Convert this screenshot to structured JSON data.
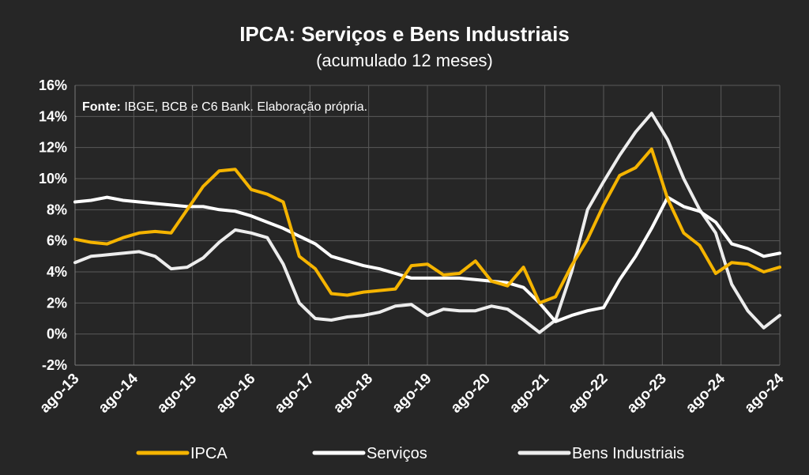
{
  "chart_data": {
    "type": "line",
    "title": "IPCA: Serviços e Bens Industriais",
    "subtitle": "(acumulado 12 meses)",
    "source_label": "Fonte:",
    "source_text": " IBGE, BCB e C6 Bank. Elaboração própria.",
    "ylim": [
      -2,
      16
    ],
    "yticks": [
      "-2%",
      "0%",
      "2%",
      "4%",
      "6%",
      "8%",
      "10%",
      "12%",
      "14%",
      "16%"
    ],
    "ytick_values": [
      -2,
      0,
      2,
      4,
      6,
      8,
      10,
      12,
      14,
      16
    ],
    "xticks": [
      "ago-13",
      "ago-14",
      "ago-15",
      "ago-16",
      "ago-17",
      "ago-18",
      "ago-19",
      "ago-20",
      "ago-21",
      "ago-22",
      "ago-23",
      "ago-24"
    ],
    "xlim": [
      0,
      132
    ],
    "grid": true,
    "legend_position": "bottom",
    "series": [
      {
        "name": "IPCA",
        "color": "#F5B400",
        "x": [
          0,
          3,
          6,
          9,
          12,
          15,
          18,
          21,
          24,
          27,
          30,
          33,
          36,
          39,
          42,
          45,
          48,
          51,
          54,
          57,
          60,
          63,
          66,
          69,
          72,
          75,
          78,
          81,
          84,
          87,
          90,
          93,
          96,
          99,
          102,
          105,
          108,
          111,
          114,
          117,
          120,
          123,
          126,
          129,
          132
        ],
        "values": [
          6.1,
          5.9,
          5.8,
          6.2,
          6.5,
          6.6,
          6.5,
          8.0,
          9.5,
          10.5,
          10.6,
          9.3,
          9.0,
          8.5,
          5.0,
          4.2,
          2.6,
          2.5,
          2.7,
          2.8,
          2.9,
          4.4,
          4.5,
          3.8,
          3.9,
          4.7,
          3.4,
          3.1,
          4.3,
          2.0,
          2.4,
          4.4,
          6.1,
          8.3,
          10.2,
          10.7,
          11.9,
          8.7,
          6.5,
          5.7,
          3.9,
          4.6,
          4.5,
          4.0,
          4.3
        ]
      },
      {
        "name": "Serviços",
        "color": "#FFFFFF",
        "x": [
          0,
          3,
          6,
          9,
          12,
          15,
          18,
          21,
          24,
          27,
          30,
          33,
          36,
          39,
          42,
          45,
          48,
          51,
          54,
          57,
          60,
          63,
          66,
          69,
          72,
          75,
          78,
          81,
          84,
          87,
          90,
          93,
          96,
          99,
          102,
          105,
          108,
          111,
          114,
          117,
          120,
          123,
          126,
          129,
          132
        ],
        "values": [
          8.5,
          8.6,
          8.8,
          8.6,
          8.5,
          8.4,
          8.3,
          8.2,
          8.2,
          8.0,
          7.9,
          7.6,
          7.2,
          6.8,
          6.3,
          5.8,
          5.0,
          4.7,
          4.4,
          4.2,
          3.9,
          3.6,
          3.6,
          3.6,
          3.6,
          3.5,
          3.4,
          3.3,
          3.0,
          2.0,
          0.8,
          1.2,
          1.5,
          1.7,
          3.5,
          5.0,
          6.8,
          8.8,
          8.2,
          7.9,
          7.2,
          5.8,
          5.5,
          5.0,
          5.2
        ]
      },
      {
        "name": "Bens Industriais",
        "color": "#EDEDED",
        "x": [
          0,
          3,
          6,
          9,
          12,
          15,
          18,
          21,
          24,
          27,
          30,
          33,
          36,
          39,
          42,
          45,
          48,
          51,
          54,
          57,
          60,
          63,
          66,
          69,
          72,
          75,
          78,
          81,
          84,
          87,
          90,
          93,
          96,
          99,
          102,
          105,
          108,
          111,
          114,
          117,
          120,
          123,
          126,
          129,
          132
        ],
        "values": [
          4.6,
          5.0,
          5.1,
          5.2,
          5.3,
          5.0,
          4.2,
          4.3,
          4.9,
          5.9,
          6.7,
          6.5,
          6.2,
          4.5,
          2.0,
          1.0,
          0.9,
          1.1,
          1.2,
          1.4,
          1.8,
          1.9,
          1.2,
          1.6,
          1.5,
          1.5,
          1.8,
          1.6,
          0.9,
          0.1,
          0.9,
          4.0,
          8.0,
          9.8,
          11.5,
          13.0,
          14.2,
          12.5,
          10.0,
          8.0,
          6.5,
          3.2,
          1.5,
          0.4,
          1.2
        ]
      }
    ]
  }
}
